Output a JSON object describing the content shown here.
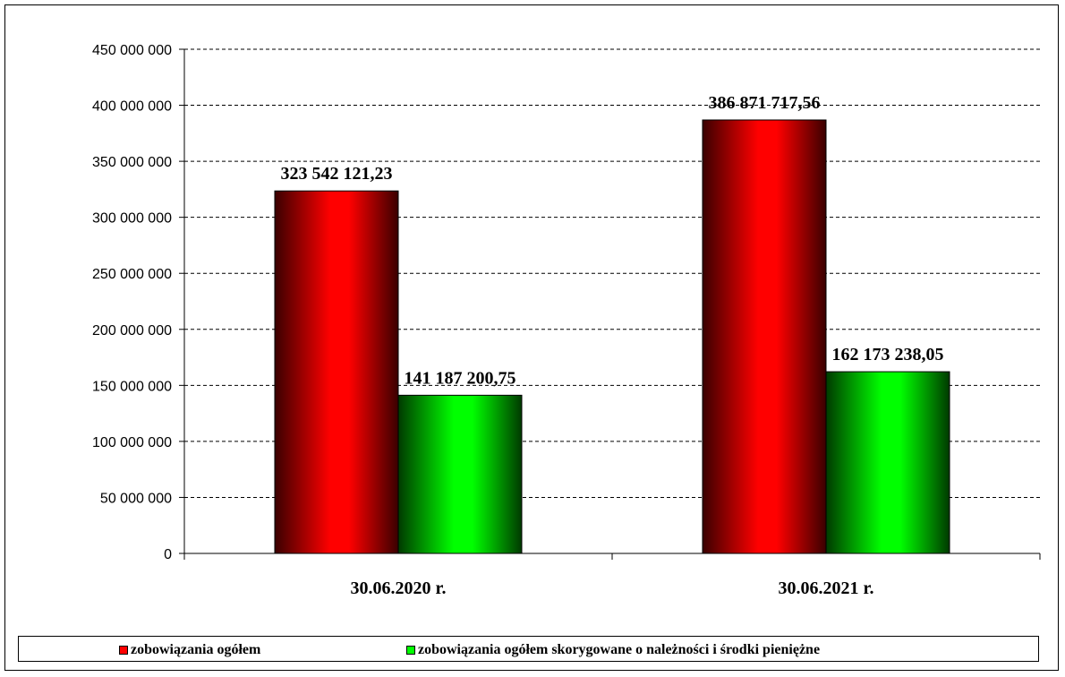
{
  "chart_data": {
    "type": "bar",
    "title": "",
    "xlabel": "",
    "ylabel": "",
    "categories": [
      "30.06.2020 r.",
      "30.06.2021 r."
    ],
    "series": [
      {
        "name": "zobowiązania ogółem",
        "values": [
          323542121.23,
          386871717.56
        ],
        "labels": [
          "323 542 121,23",
          "386 871 717,56"
        ],
        "color": "#ff0000"
      },
      {
        "name": "zobowiązania ogółem skorygowane o należności i środki pieniężne",
        "values": [
          141187200.75,
          162173238.05
        ],
        "labels": [
          "141 187 200,75",
          "162 173 238,05"
        ],
        "color": "#00ff00"
      }
    ],
    "ylim": [
      0,
      450000000
    ],
    "yticks": [
      0,
      50000000,
      100000000,
      150000000,
      200000000,
      250000000,
      300000000,
      350000000,
      400000000,
      450000000
    ],
    "ytick_labels": [
      "0",
      "50 000 000",
      "100 000 000",
      "150 000 000",
      "200 000 000",
      "250 000 000",
      "300 000 000",
      "350 000 000",
      "400 000 000",
      "450 000 000"
    ],
    "grid": true,
    "legend_position": "bottom"
  }
}
